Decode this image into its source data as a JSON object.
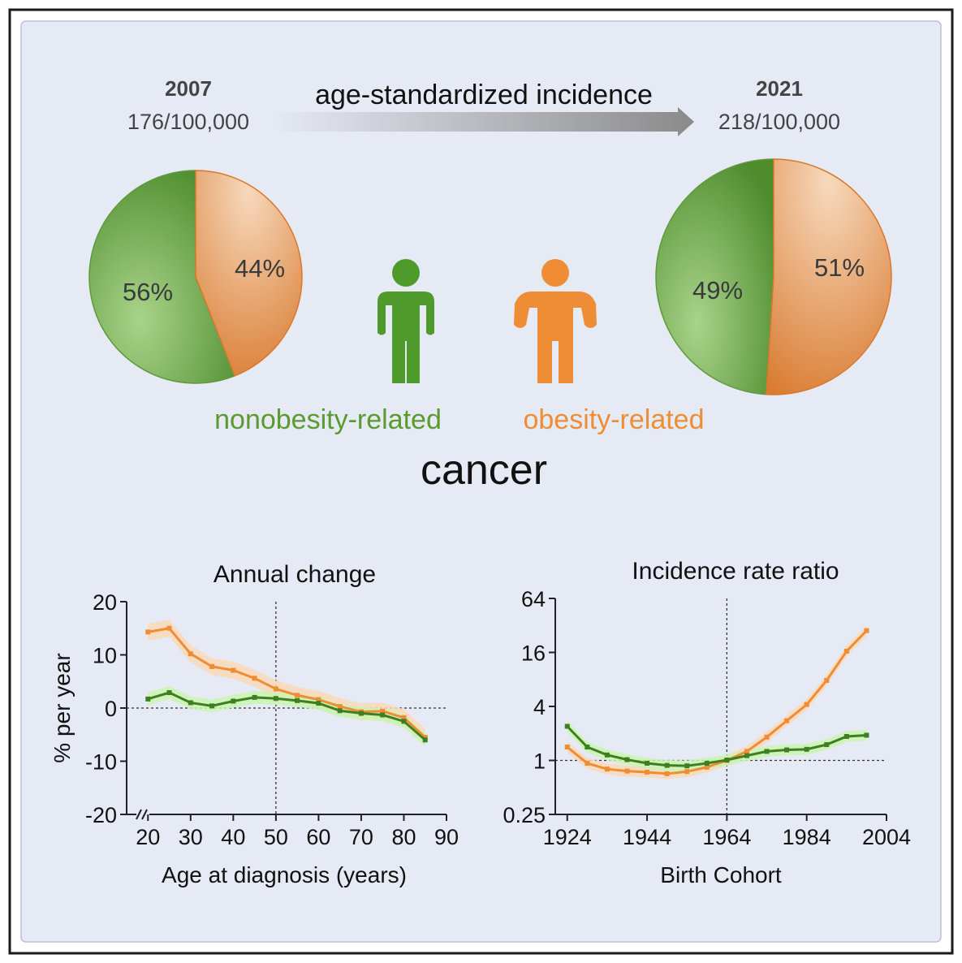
{
  "header": {
    "left_year": "2007",
    "left_rate": "176/100,000",
    "arrow_label": "age-standardized incidence",
    "right_year": "2021",
    "right_rate": "218/100,000"
  },
  "legend": {
    "nonobesity": "nonobesity-related",
    "obesity": "obesity-related",
    "title": "cancer"
  },
  "colors": {
    "background": "#e6eaf5",
    "border": "#1a1a1a",
    "green": "#4e9a2a",
    "green_dark": "#3f7f22",
    "green_light": "#8fc46a",
    "green_band": "#c9f5b0",
    "orange": "#ee8d35",
    "orange_dark": "#d9782c",
    "orange_light": "#f6cfac",
    "orange_band": "#f9d9b9"
  },
  "icons": [
    "person-green-icon",
    "person-orange-icon"
  ],
  "chart_data": [
    {
      "type": "pie",
      "title": "2007",
      "slices": [
        {
          "label": "56%",
          "value": 56,
          "category": "nonobesity-related"
        },
        {
          "label": "44%",
          "value": 44,
          "category": "obesity-related"
        }
      ]
    },
    {
      "type": "pie",
      "title": "2021",
      "slices": [
        {
          "label": "49%",
          "value": 49,
          "category": "nonobesity-related"
        },
        {
          "label": "51%",
          "value": 51,
          "category": "obesity-related"
        }
      ]
    },
    {
      "type": "line",
      "title": "Annual change",
      "xlabel": "Age at diagnosis (years)",
      "ylabel": "% per year",
      "xticks": [
        20,
        30,
        40,
        50,
        60,
        70,
        80,
        90
      ],
      "yticks": [
        -20,
        -10,
        0,
        10,
        20
      ],
      "xlim": [
        15,
        90
      ],
      "ylim": [
        -20,
        20
      ],
      "axis_break": true,
      "vline": 50,
      "hline": 0,
      "series": [
        {
          "category": "obesity-related",
          "x": [
            20,
            25,
            30,
            35,
            40,
            45,
            50,
            55,
            60,
            65,
            70,
            75,
            80,
            85
          ],
          "y": [
            14.3,
            15.0,
            10.2,
            7.8,
            7.1,
            5.6,
            3.6,
            2.4,
            1.6,
            0.3,
            -0.7,
            -0.6,
            -1.8,
            -5.5
          ],
          "band": 1.6
        },
        {
          "category": "nonobesity-related",
          "x": [
            20,
            25,
            30,
            35,
            40,
            45,
            50,
            55,
            60,
            65,
            70,
            75,
            80,
            85
          ],
          "y": [
            1.7,
            2.9,
            1.0,
            0.4,
            1.3,
            2.0,
            1.8,
            1.4,
            0.9,
            -0.5,
            -1.0,
            -1.3,
            -2.5,
            -6.0
          ],
          "band": 1.2
        }
      ]
    },
    {
      "type": "line",
      "title": "Incidence rate ratio",
      "xlabel": "Birth Cohort",
      "ylabel": "",
      "xticks": [
        1924,
        1944,
        1964,
        1984,
        2004
      ],
      "yticks": [
        0.25,
        1,
        4,
        16,
        64
      ],
      "ytick_labels": [
        "0.25",
        "1",
        "4",
        "16",
        "64"
      ],
      "yscale": "log2",
      "xlim": [
        1921,
        2004
      ],
      "ylim": [
        0.25,
        64
      ],
      "vline": 1964,
      "hline": 1,
      "series": [
        {
          "category": "obesity-related",
          "x": [
            1924,
            1929,
            1934,
            1939,
            1944,
            1949,
            1954,
            1959,
            1964,
            1969,
            1974,
            1979,
            1984,
            1989,
            1994,
            1999
          ],
          "y": [
            1.41,
            0.93,
            0.8,
            0.76,
            0.74,
            0.71,
            0.75,
            0.84,
            1.0,
            1.26,
            1.82,
            2.77,
            4.2,
            7.8,
            16.5,
            28.0
          ],
          "band": 1.15
        },
        {
          "category": "nonobesity-related",
          "x": [
            1924,
            1929,
            1934,
            1939,
            1944,
            1949,
            1954,
            1959,
            1964,
            1969,
            1974,
            1979,
            1984,
            1989,
            1994,
            1999
          ],
          "y": [
            2.4,
            1.41,
            1.15,
            1.02,
            0.93,
            0.88,
            0.87,
            0.93,
            1.01,
            1.13,
            1.26,
            1.31,
            1.33,
            1.5,
            1.85,
            1.91
          ],
          "band": 1.15
        }
      ]
    }
  ]
}
